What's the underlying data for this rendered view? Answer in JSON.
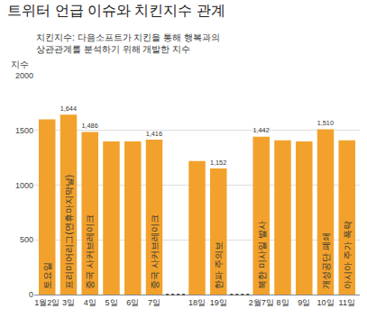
{
  "chart_data": {
    "type": "bar",
    "title": "트위터 언급 이슈와 치킨지수 관계",
    "subtitle": [
      "치킨지수: 다음소프트가 치킨을 통해 행복과의",
      "상관관계를 분석하기 위해 개발한 지수"
    ],
    "y_label": "지수",
    "categories": [
      "1월2일",
      "3일",
      "4일",
      "5일",
      "6일",
      "7일",
      null,
      "18일",
      "19일",
      null,
      "2월7일",
      "8일",
      "9일",
      "10일",
      "11일"
    ],
    "values": [
      1600,
      1644,
      1486,
      1400,
      1400,
      1416,
      null,
      1220,
      1152,
      null,
      1442,
      1410,
      1400,
      1510,
      1410
    ],
    "value_labels": [
      null,
      "1,644",
      "1,486",
      null,
      null,
      "1,416",
      null,
      null,
      "1,152",
      null,
      "1,442",
      null,
      null,
      "1,510",
      null
    ],
    "data_labels": true,
    "annotations": [
      {
        "category": "1월2일",
        "text": "토요일"
      },
      {
        "category": "3일",
        "text": "프리미어리그(연휴마지막날)"
      },
      {
        "category": "4일",
        "text": "중국 사커브레이크"
      },
      {
        "category": "7일",
        "text": "중국 사커브레이크"
      },
      {
        "category": "19일",
        "text": "한파 주의보"
      },
      {
        "category": "2월7일",
        "text": "북한 미사일 발사"
      },
      {
        "category": "10일",
        "text": "개성공단 폐쇄"
      },
      {
        "category": "11일",
        "text": "아시아 주가 폭락"
      }
    ],
    "color": "#f2a22c",
    "ylim": [
      0,
      2000
    ],
    "yticks": [
      0,
      500,
      1000,
      1500,
      2000
    ],
    "grid": true
  }
}
